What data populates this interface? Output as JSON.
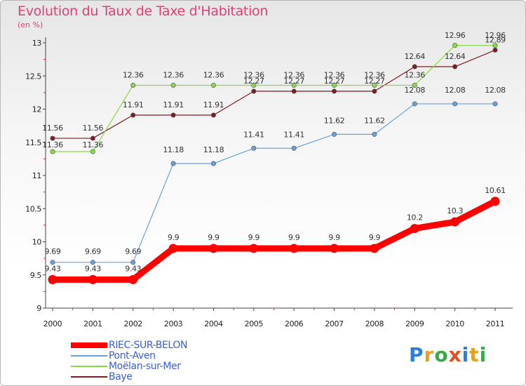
{
  "title": "Evolution du Taux de Taxe d'Habitation",
  "subtitle": "(en %)",
  "brand": {
    "text": "Proxiti",
    "letter_colors": [
      "#2a7fd8",
      "#e8a020",
      "#3aa84a",
      "#e05020",
      "#2a7fd8",
      "#e8a020",
      "#3aa84a"
    ]
  },
  "chart_data": {
    "type": "line",
    "x": [
      "2000",
      "2001",
      "2002",
      "2003",
      "2004",
      "2005",
      "2006",
      "2007",
      "2008",
      "2009",
      "2010",
      "2011"
    ],
    "ylim": [
      9,
      13
    ],
    "yticks": [
      "9",
      "9.5",
      "10",
      "10.5",
      "11",
      "11.5",
      "12",
      "12.5",
      "13"
    ],
    "grid": false,
    "legend_position": "bottom",
    "series": [
      {
        "name": "RIEC-SUR-BELON",
        "color": "#ff0000",
        "values": [
          9.43,
          9.43,
          9.43,
          9.9,
          9.9,
          9.9,
          9.9,
          9.9,
          9.9,
          10.2,
          10.3,
          10.61
        ],
        "labels": [
          "9.43",
          "9.43",
          "9.43",
          "9.9",
          "9.9",
          "9.9",
          "9.9",
          "9.9",
          "9.9",
          "10.2",
          "10.3",
          "10.61"
        ]
      },
      {
        "name": "Pont-Aven",
        "color": "#6aa0d8",
        "values": [
          9.69,
          9.69,
          9.69,
          11.18,
          11.18,
          11.41,
          11.41,
          11.62,
          11.62,
          12.08,
          12.08,
          12.08
        ],
        "labels": [
          "9.69",
          "9.69",
          "9.69",
          "11.18",
          "11.18",
          "11.41",
          "11.41",
          "11.62",
          "11.62",
          "12.08",
          "12.08",
          "12.08"
        ]
      },
      {
        "name": "Moëlan-sur-Mer",
        "color": "#8ad84a",
        "values": [
          11.36,
          11.36,
          12.36,
          12.36,
          12.36,
          12.36,
          12.36,
          12.36,
          12.36,
          12.36,
          12.96,
          12.96
        ],
        "labels": [
          "11.36",
          "11.36",
          "12.36",
          "12.36",
          "12.36",
          "12.36",
          "12.36",
          "12.36",
          "12.36",
          "12.36",
          "12.96",
          "12.96"
        ]
      },
      {
        "name": "Baye",
        "color": "#7a1e24",
        "values": [
          11.56,
          11.56,
          11.91,
          11.91,
          11.91,
          12.27,
          12.27,
          12.27,
          12.27,
          12.64,
          12.64,
          12.89
        ],
        "labels": [
          "11.56",
          "11.56",
          "11.91",
          "11.91",
          "11.91",
          "12.27",
          "12.27",
          "12.27",
          "12.27",
          "12.64",
          "12.64",
          "12.89"
        ]
      }
    ]
  }
}
